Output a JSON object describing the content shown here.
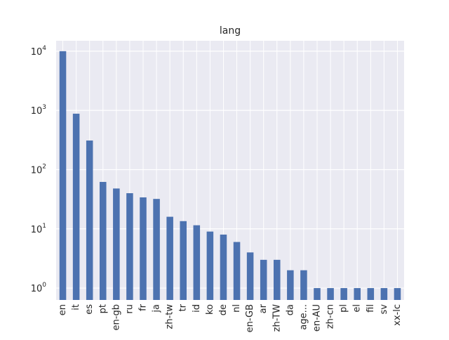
{
  "chart_data": {
    "type": "bar",
    "title": "lang",
    "xlabel": "",
    "ylabel": "",
    "yscale": "log",
    "ylim": [
      0.63,
      15000
    ],
    "grid": true,
    "y_ticks": [
      {
        "value": 1,
        "base": "10",
        "exp": "0"
      },
      {
        "value": 10,
        "base": "10",
        "exp": "1"
      },
      {
        "value": 100,
        "base": "10",
        "exp": "2"
      },
      {
        "value": 1000,
        "base": "10",
        "exp": "3"
      },
      {
        "value": 10000,
        "base": "10",
        "exp": "4"
      }
    ],
    "categories": [
      "en",
      "it",
      "es",
      "pt",
      "en-gb",
      "ru",
      "fr",
      "ja",
      "zh-tw",
      "tr",
      "id",
      "ko",
      "de",
      "nl",
      "en-GB",
      "ar",
      "zh-TW",
      "da",
      "age...",
      "en-AU",
      "zh-cn",
      "pl",
      "el",
      "fil",
      "sv",
      "xx-lc"
    ],
    "values": [
      10000,
      880,
      310,
      62,
      48,
      40,
      34,
      32,
      16,
      13.5,
      11.5,
      9,
      8,
      6,
      4,
      3,
      3,
      2,
      2,
      1,
      1,
      1,
      1,
      1,
      1,
      1
    ],
    "colors": {
      "bar": "#4c72b0",
      "background": "#eaeaf2",
      "grid": "#ffffff"
    }
  }
}
